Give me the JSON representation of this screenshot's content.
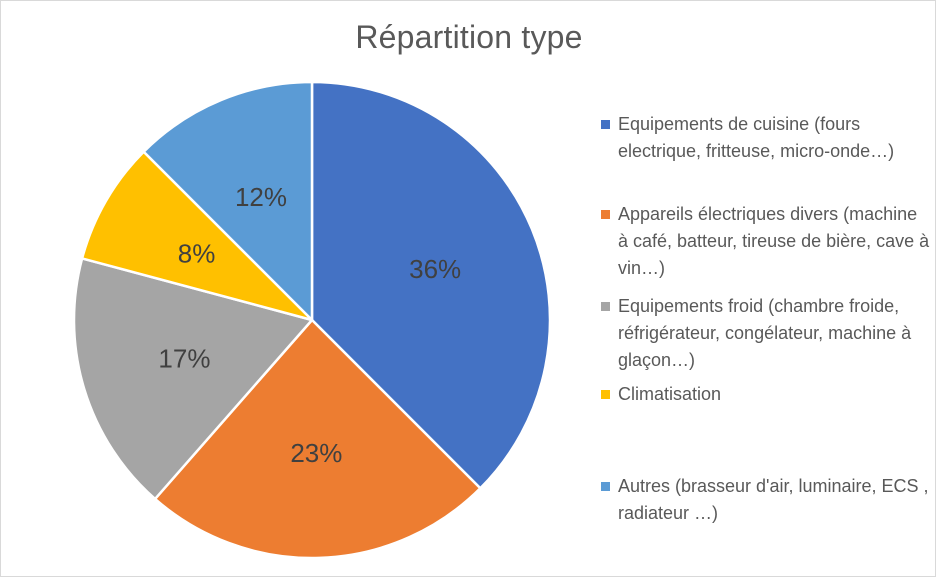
{
  "chart_data": {
    "type": "pie",
    "title": "Répartition type",
    "slices": [
      {
        "label": "Equipements de cuisine (fours electrique, fritteuse, micro-onde…)",
        "value": 36,
        "display": "36%",
        "color": "#4472c4"
      },
      {
        "label": "Appareils électriques divers (machine à café, batteur, tireuse de bière, cave à vin…)",
        "value": 23,
        "display": "23%",
        "color": "#ed7d31"
      },
      {
        "label": "Equipements froid (chambre froide, réfrigérateur, congélateur, machine à glaçon…)",
        "value": 17,
        "display": "17%",
        "color": "#a5a5a5"
      },
      {
        "label": "Climatisation",
        "value": 8,
        "display": "8%",
        "color": "#ffc000"
      },
      {
        "label": "Autres (brasseur d'air, luminaire, ECS , radiateur …)",
        "value": 12,
        "display": "12%",
        "color": "#5b9bd5"
      }
    ],
    "legend_position": "right"
  }
}
